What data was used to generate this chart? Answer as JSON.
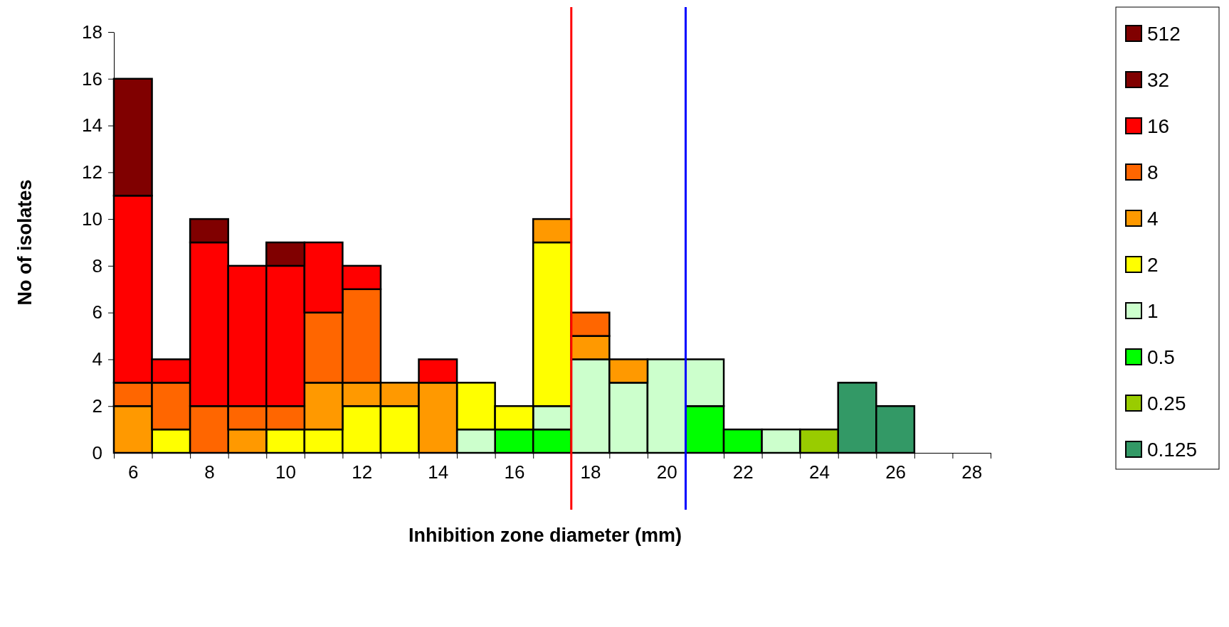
{
  "chart_data": {
    "type": "bar",
    "stacked": true,
    "xlabel": "Inhibition zone diameter (mm)",
    "ylabel": "No of isolates",
    "x": [
      6,
      7,
      8,
      9,
      10,
      11,
      12,
      13,
      14,
      15,
      16,
      17,
      18,
      19,
      20,
      21,
      22,
      23,
      24,
      25,
      26,
      27,
      28
    ],
    "series": [
      {
        "name": "0.125",
        "color": "#339966",
        "values": [
          0,
          0,
          0,
          0,
          0,
          0,
          0,
          0,
          0,
          0,
          0,
          0,
          0,
          0,
          0,
          0,
          0,
          0,
          0,
          3,
          2,
          0,
          0
        ]
      },
      {
        "name": "0.25",
        "color": "#99cc00",
        "values": [
          0,
          0,
          0,
          0,
          0,
          0,
          0,
          0,
          0,
          0,
          0,
          0,
          0,
          0,
          0,
          0,
          0,
          0,
          1,
          0,
          0,
          0,
          0
        ]
      },
      {
        "name": "0.5",
        "color": "#00ff00",
        "values": [
          0,
          0,
          0,
          0,
          0,
          0,
          0,
          0,
          0,
          0,
          1,
          1,
          0,
          0,
          0,
          2,
          1,
          0,
          0,
          0,
          0,
          0,
          0
        ]
      },
      {
        "name": "1",
        "color": "#ccffcc",
        "values": [
          0,
          0,
          0,
          0,
          0,
          0,
          0,
          0,
          0,
          1,
          0,
          1,
          4,
          3,
          4,
          2,
          0,
          1,
          0,
          0,
          0,
          0,
          0
        ]
      },
      {
        "name": "2",
        "color": "#ffff00",
        "values": [
          0,
          1,
          0,
          0,
          1,
          1,
          2,
          2,
          0,
          2,
          1,
          7,
          0,
          0,
          0,
          0,
          0,
          0,
          0,
          0,
          0,
          0,
          0
        ]
      },
      {
        "name": "4",
        "color": "#ff9900",
        "values": [
          2,
          0,
          0,
          1,
          0,
          2,
          1,
          1,
          3,
          0,
          0,
          1,
          1,
          1,
          0,
          0,
          0,
          0,
          0,
          0,
          0,
          0,
          0
        ]
      },
      {
        "name": "8",
        "color": "#ff6600",
        "values": [
          1,
          2,
          2,
          1,
          1,
          3,
          4,
          0,
          0,
          0,
          0,
          0,
          1,
          0,
          0,
          0,
          0,
          0,
          0,
          0,
          0,
          0,
          0
        ]
      },
      {
        "name": "16",
        "color": "#ff0000",
        "values": [
          8,
          1,
          7,
          6,
          6,
          3,
          1,
          0,
          1,
          0,
          0,
          0,
          0,
          0,
          0,
          0,
          0,
          0,
          0,
          0,
          0,
          0,
          0
        ]
      },
      {
        "name": "32",
        "color": "#800000",
        "values": [
          5,
          0,
          1,
          0,
          1,
          0,
          0,
          0,
          0,
          0,
          0,
          0,
          0,
          0,
          0,
          0,
          0,
          0,
          0,
          0,
          0,
          0,
          0
        ]
      },
      {
        "name": "512",
        "color": "#800000",
        "values": [
          0,
          0,
          0,
          0,
          0,
          0,
          0,
          0,
          0,
          0,
          0,
          0,
          0,
          0,
          0,
          0,
          0,
          0,
          0,
          0,
          0,
          0,
          0
        ]
      }
    ],
    "xlim": [
      5.5,
      28.5
    ],
    "xticks": [
      {
        "value": 5.5,
        "label": null
      },
      6,
      {
        "value": 6.5,
        "label": null
      },
      {
        "value": 7.5,
        "label": null
      },
      8,
      {
        "value": 8.5,
        "label": null
      },
      {
        "value": 9.5,
        "label": null
      },
      10,
      {
        "value": 10.5,
        "label": null
      },
      {
        "value": 11.5,
        "label": null
      },
      12,
      {
        "value": 12.5,
        "label": null
      },
      {
        "value": 13.5,
        "label": null
      },
      14,
      {
        "value": 14.5,
        "label": null
      },
      {
        "value": 15.5,
        "label": null
      },
      16,
      {
        "value": 16.5,
        "label": null
      },
      {
        "value": 17.5,
        "label": null
      },
      18,
      {
        "value": 18.5,
        "label": null
      },
      {
        "value": 19.5,
        "label": null
      },
      20,
      {
        "value": 20.5,
        "label": null
      },
      {
        "value": 21.5,
        "label": null
      },
      22,
      {
        "value": 22.5,
        "label": null
      },
      {
        "value": 23.5,
        "label": null
      },
      24,
      {
        "value": 24.5,
        "label": null
      },
      {
        "value": 25.5,
        "label": null
      },
      26,
      {
        "value": 26.5,
        "label": null
      },
      {
        "value": 27.5,
        "label": null
      },
      28,
      {
        "value": 28.5,
        "label": null
      }
    ],
    "ylim": [
      0,
      18
    ],
    "yticks": [
      0,
      2,
      4,
      6,
      8,
      10,
      12,
      14,
      16,
      18
    ],
    "ref_lines": [
      {
        "axis": "x",
        "value": 17.5,
        "color": "#ff0000"
      },
      {
        "axis": "x",
        "value": 20.5,
        "color": "#0000ff"
      }
    ],
    "legend": "right",
    "grid": false
  }
}
